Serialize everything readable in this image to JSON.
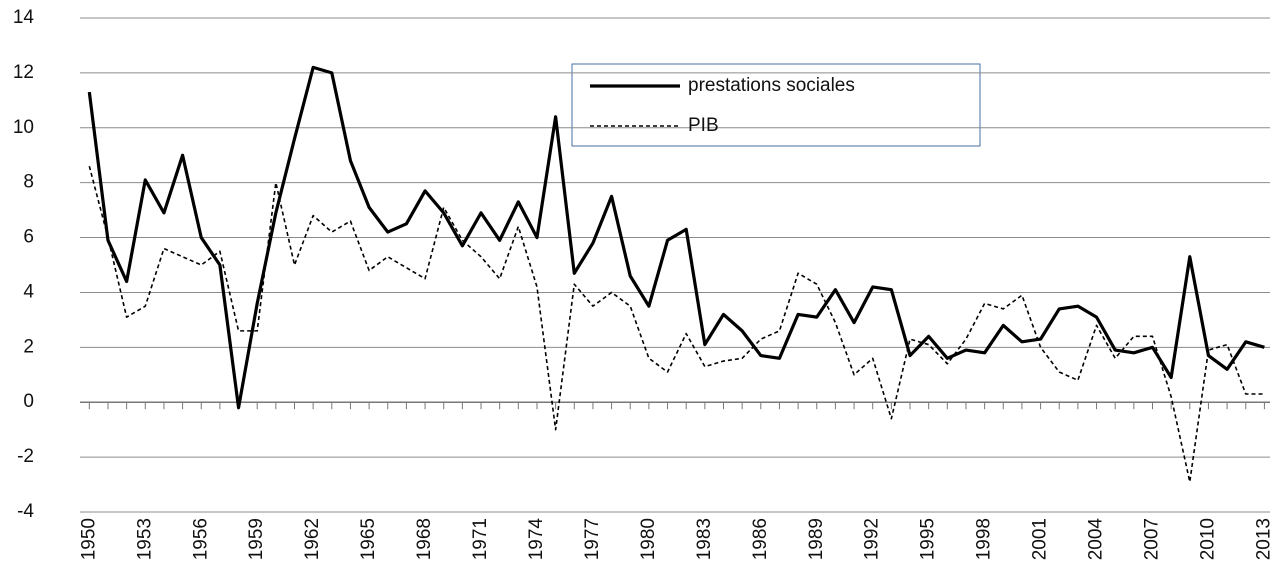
{
  "chart_data": {
    "type": "line",
    "x": [
      1950,
      1951,
      1952,
      1953,
      1954,
      1955,
      1956,
      1957,
      1958,
      1959,
      1960,
      1961,
      1962,
      1963,
      1964,
      1965,
      1966,
      1967,
      1968,
      1969,
      1970,
      1971,
      1972,
      1973,
      1974,
      1975,
      1976,
      1977,
      1978,
      1979,
      1980,
      1981,
      1982,
      1983,
      1984,
      1985,
      1986,
      1987,
      1988,
      1989,
      1990,
      1991,
      1992,
      1993,
      1994,
      1995,
      1996,
      1997,
      1998,
      1999,
      2000,
      2001,
      2002,
      2003,
      2004,
      2005,
      2006,
      2007,
      2008,
      2009,
      2010,
      2011,
      2012,
      2013
    ],
    "series": [
      {
        "name": "prestations sociales",
        "color": "#000000",
        "style": "solid",
        "values": [
          11.3,
          5.9,
          4.4,
          8.1,
          6.9,
          9.0,
          6.0,
          5.0,
          -0.2,
          3.6,
          6.9,
          9.6,
          12.2,
          12.0,
          8.8,
          7.1,
          6.2,
          6.5,
          7.7,
          6.9,
          5.7,
          6.9,
          5.9,
          7.3,
          6.0,
          10.4,
          4.7,
          5.8,
          7.5,
          4.6,
          3.5,
          5.9,
          6.3,
          2.1,
          3.2,
          2.6,
          1.7,
          1.6,
          3.2,
          3.1,
          4.1,
          2.9,
          4.2,
          4.1,
          1.7,
          2.4,
          1.6,
          1.9,
          1.8,
          2.8,
          2.2,
          2.3,
          3.4,
          3.5,
          3.1,
          1.9,
          1.8,
          2.0,
          0.9,
          5.3,
          1.7,
          1.2,
          2.2,
          2.0
        ]
      },
      {
        "name": "PIB",
        "color": "#000000",
        "style": "dashed",
        "values": [
          8.6,
          6.0,
          3.1,
          3.5,
          5.6,
          5.3,
          5.0,
          5.5,
          2.6,
          2.6,
          8.0,
          5.0,
          6.8,
          6.2,
          6.6,
          4.8,
          5.3,
          4.9,
          4.5,
          7.1,
          5.9,
          5.3,
          4.5,
          6.4,
          4.2,
          -1.0,
          4.3,
          3.5,
          4.0,
          3.5,
          1.6,
          1.1,
          2.5,
          1.3,
          1.5,
          1.6,
          2.3,
          2.6,
          4.7,
          4.3,
          2.9,
          1.0,
          1.6,
          -0.6,
          2.3,
          2.1,
          1.4,
          2.3,
          3.6,
          3.4,
          3.9,
          2.0,
          1.1,
          0.8,
          2.8,
          1.6,
          2.4,
          2.4,
          0.2,
          -2.9,
          1.9,
          2.1,
          0.3,
          0.3
        ]
      }
    ],
    "xlim": [
      1949.5,
      2013.3
    ],
    "xticks": [
      1950,
      1953,
      1956,
      1959,
      1962,
      1965,
      1968,
      1971,
      1974,
      1977,
      1980,
      1983,
      1986,
      1989,
      1992,
      1995,
      1998,
      2001,
      2004,
      2007,
      2010,
      2013
    ],
    "ylim": [
      -4,
      14
    ],
    "yticks": [
      -4,
      -2,
      0,
      2,
      4,
      6,
      8,
      10,
      12,
      14
    ],
    "grid": true
  }
}
